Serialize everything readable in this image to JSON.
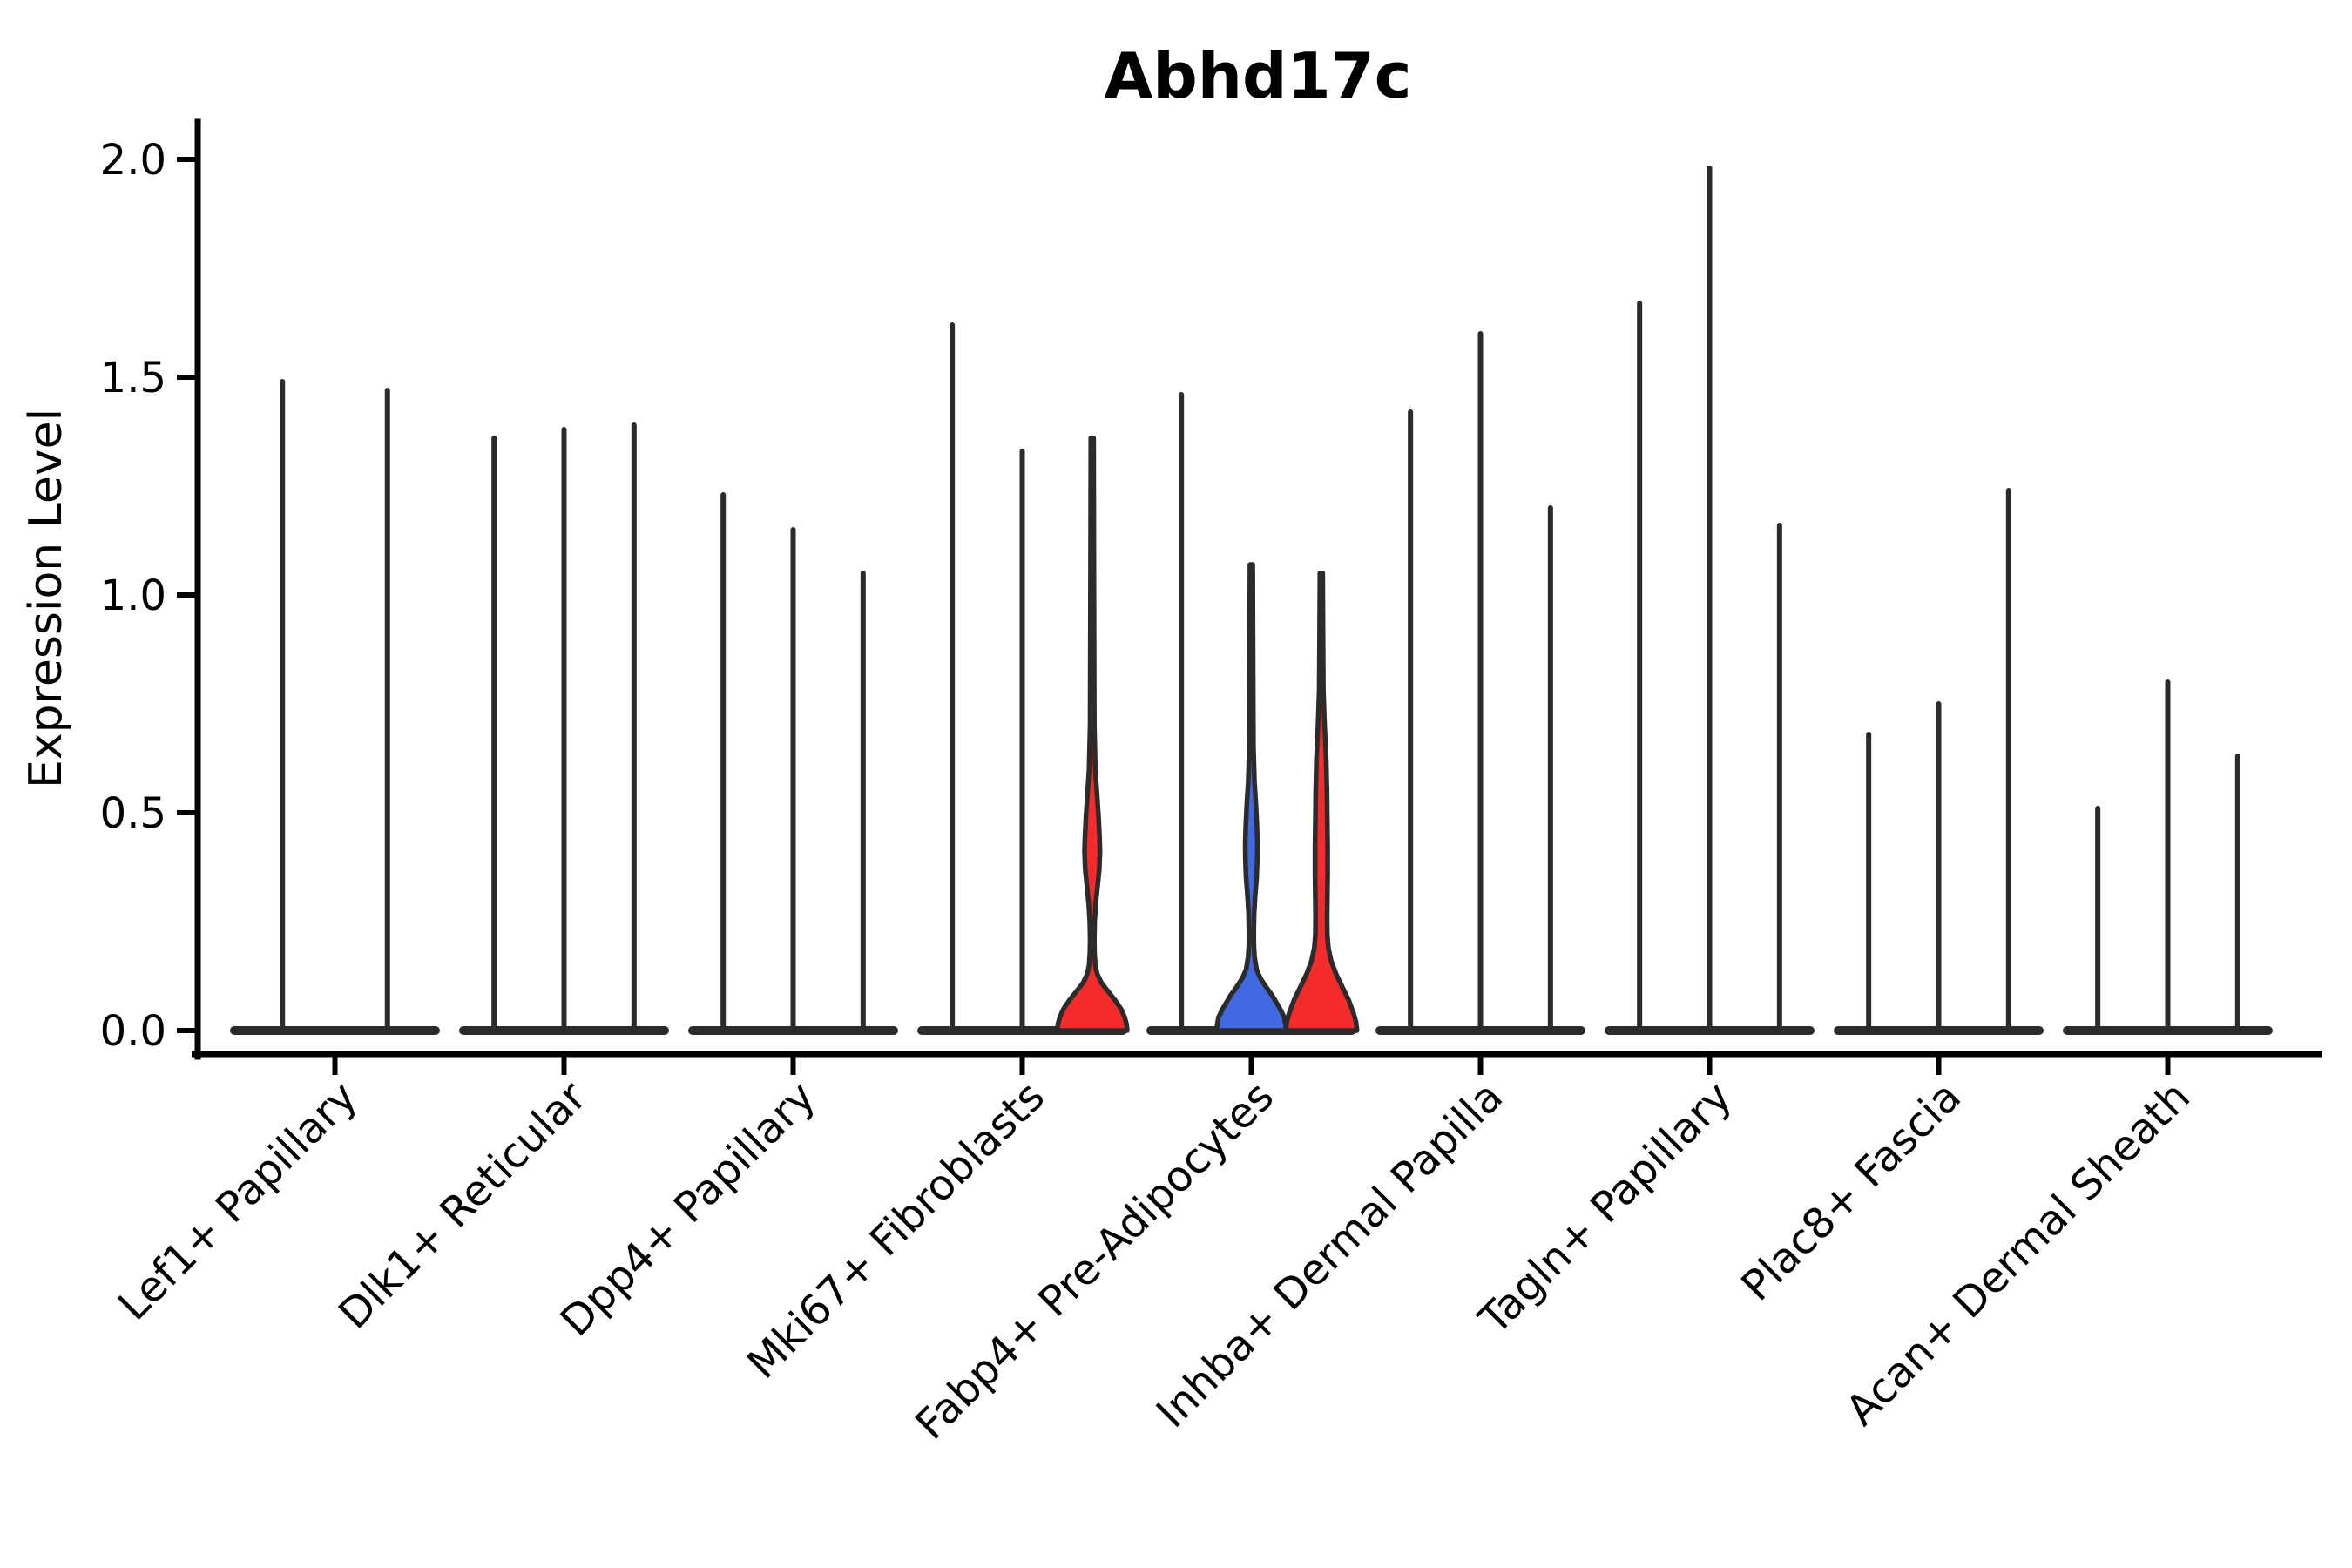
{
  "chart_data": {
    "type": "violin",
    "title": "Abhd17c",
    "ylabel": "Expression Level",
    "xlabel": "",
    "ylim": [
      0,
      2.0
    ],
    "grid": false,
    "legend": "none",
    "yticks": [
      {
        "value": 2.0,
        "label": "2.0"
      },
      {
        "value": 1.5,
        "label": "1.5"
      },
      {
        "value": 1.0,
        "label": "1.0"
      },
      {
        "value": 0.5,
        "label": "0.5"
      },
      {
        "value": 0.0,
        "label": "0.0"
      }
    ],
    "colors": {
      "red": "#F32B2B",
      "blue": "#4169E1",
      "outline": "#2B2B2B",
      "axis": "#000000",
      "background": "#ffffff"
    },
    "description": "Violin plot of Abhd17c expression across 9 fibroblast cell-type groups; most violins collapse to a thin spike at 0 with a flat base; three violins show filled density bodies (one red in Mki67+ Fibroblasts, one blue and one red in Fabp4+ Pre-Adipocytes).",
    "groups": [
      {
        "label": "Lef1+ Papillary",
        "violins": [
          {
            "max": 1.49,
            "fill": "none"
          },
          {
            "max": 1.47,
            "fill": "none"
          }
        ]
      },
      {
        "label": "Dlk1+ Reticular",
        "violins": [
          {
            "max": 1.36,
            "fill": "none"
          },
          {
            "max": 1.38,
            "fill": "none"
          },
          {
            "max": 1.39,
            "fill": "none"
          }
        ]
      },
      {
        "label": "Dpp4+ Papillary",
        "violins": [
          {
            "max": 1.23,
            "fill": "none"
          },
          {
            "max": 1.15,
            "fill": "none"
          },
          {
            "max": 1.05,
            "fill": "none"
          }
        ]
      },
      {
        "label": "Mki67+ Fibroblasts",
        "violins": [
          {
            "max": 1.62,
            "fill": "none"
          },
          {
            "max": 1.33,
            "fill": "none"
          },
          {
            "max": 1.36,
            "fill": "red",
            "bulge_center": 0.41,
            "bulge_range": [
              0.25,
              0.58
            ],
            "profile": [
              [
                1.36,
                0.04
              ],
              [
                1.0,
                0.05
              ],
              [
                0.7,
                0.06
              ],
              [
                0.6,
                0.09
              ],
              [
                0.55,
                0.13
              ],
              [
                0.49,
                0.18
              ],
              [
                0.44,
                0.21
              ],
              [
                0.41,
                0.22
              ],
              [
                0.37,
                0.2
              ],
              [
                0.33,
                0.15
              ],
              [
                0.29,
                0.1
              ],
              [
                0.25,
                0.07
              ],
              [
                0.21,
                0.06
              ],
              [
                0.18,
                0.065
              ],
              [
                0.15,
                0.09
              ],
              [
                0.13,
                0.14
              ],
              [
                0.11,
                0.26
              ],
              [
                0.09,
                0.45
              ],
              [
                0.07,
                0.65
              ],
              [
                0.05,
                0.82
              ],
              [
                0.03,
                0.93
              ],
              [
                0.015,
                0.98
              ],
              [
                0.0,
                1.0
              ]
            ]
          }
        ]
      },
      {
        "label": "Fabp4+ Pre-Adipocytes",
        "violins": [
          {
            "max": 1.46,
            "fill": "none"
          },
          {
            "max": 1.07,
            "fill": "blue",
            "bulge_center": 0.41,
            "bulge_range": [
              0.26,
              0.55
            ],
            "profile": [
              [
                1.07,
                0.04
              ],
              [
                0.85,
                0.05
              ],
              [
                0.65,
                0.06
              ],
              [
                0.57,
                0.09
              ],
              [
                0.52,
                0.13
              ],
              [
                0.47,
                0.16
              ],
              [
                0.43,
                0.175
              ],
              [
                0.39,
                0.17
              ],
              [
                0.35,
                0.15
              ],
              [
                0.31,
                0.11
              ],
              [
                0.27,
                0.08
              ],
              [
                0.23,
                0.07
              ],
              [
                0.2,
                0.07
              ],
              [
                0.17,
                0.09
              ],
              [
                0.14,
                0.15
              ],
              [
                0.12,
                0.26
              ],
              [
                0.1,
                0.42
              ],
              [
                0.08,
                0.6
              ],
              [
                0.05,
                0.82
              ],
              [
                0.03,
                0.94
              ],
              [
                0.0,
                1.0
              ]
            ]
          },
          {
            "max": 1.05,
            "fill": "red",
            "bulge_center": 0.35,
            "bulge_range": [
              0.0,
              0.71
            ],
            "profile": [
              [
                1.05,
                0.04
              ],
              [
                0.9,
                0.05
              ],
              [
                0.78,
                0.06
              ],
              [
                0.71,
                0.09
              ],
              [
                0.62,
                0.14
              ],
              [
                0.55,
                0.16
              ],
              [
                0.48,
                0.17
              ],
              [
                0.42,
                0.18
              ],
              [
                0.36,
                0.18
              ],
              [
                0.3,
                0.17
              ],
              [
                0.26,
                0.165
              ],
              [
                0.22,
                0.17
              ],
              [
                0.19,
                0.2
              ],
              [
                0.16,
                0.28
              ],
              [
                0.13,
                0.42
              ],
              [
                0.1,
                0.6
              ],
              [
                0.07,
                0.78
              ],
              [
                0.04,
                0.92
              ],
              [
                0.02,
                0.99
              ],
              [
                0.0,
                1.02
              ]
            ]
          }
        ]
      },
      {
        "label": "Inhba+ Dermal Papilla",
        "violins": [
          {
            "max": 1.42,
            "fill": "none"
          },
          {
            "max": 1.6,
            "fill": "none"
          },
          {
            "max": 1.2,
            "fill": "none"
          }
        ]
      },
      {
        "label": "Tagln+ Papillary",
        "violins": [
          {
            "max": 1.67,
            "fill": "none"
          },
          {
            "max": 1.98,
            "fill": "none"
          },
          {
            "max": 1.16,
            "fill": "none"
          }
        ]
      },
      {
        "label": "Plac8+ Fascia",
        "violins": [
          {
            "max": 0.68,
            "fill": "none"
          },
          {
            "max": 0.75,
            "fill": "none"
          },
          {
            "max": 1.24,
            "fill": "none"
          }
        ]
      },
      {
        "label": "Acan+ Dermal Sheath",
        "violins": [
          {
            "max": 0.51,
            "fill": "none"
          },
          {
            "max": 0.8,
            "fill": "none"
          },
          {
            "max": 0.63,
            "fill": "none"
          }
        ]
      }
    ]
  }
}
